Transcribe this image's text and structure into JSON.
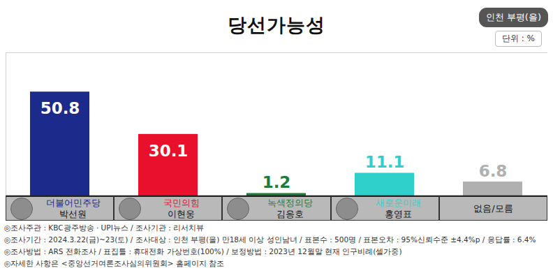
{
  "chart_data": {
    "type": "bar",
    "title": "당선가능성",
    "annotations": [
      "인천 부평(을)",
      "단위 : %"
    ],
    "categories": [
      "더불어민주당\n박선원",
      "국민의힘\n이현웅",
      "녹색정의당\n김응호",
      "새로운미래\n홍영표",
      "없음/모름"
    ],
    "values": [
      50.8,
      30.1,
      1.2,
      11.1,
      6.8
    ],
    "colors": [
      "#1c2a8c",
      "#e8102a",
      "#1e7b3a",
      "#2fd0cc",
      "#b0b0b0"
    ],
    "ylim": [
      0,
      70
    ],
    "yticks": [],
    "grid": false,
    "data_labels": true,
    "tick_labels": false,
    "notes": [
      "◎조사주관 : KBC광주방송 · UPI뉴스 / 조사기관 : 리서치뷰",
      "◎조사기간 : 2024.3.22(금)~23(토) / 조사대상 : 인천 부평(을) 만18세 이상 성인남녀 / 표본수 : 500명 / 표본오차 : 95%신뢰수준 ±4.4%p / 응답률 : 6.4%",
      "◎조사방법 : ARS 전화조사 / 표집틀 : 휴대전화 가상번호(100%) / 보정방법 : 2023년 12월말 현재 인구비례(셀가중)",
      "◎자세한 사항은 <중앙선거여론조사심의위원회> 홈페이지 참조"
    ]
  }
}
